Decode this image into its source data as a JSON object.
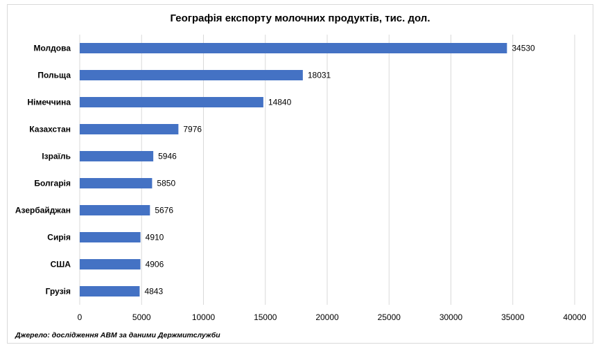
{
  "chart_data": {
    "type": "bar",
    "orientation": "horizontal",
    "title": "Географія експорту молочних продуктів, тис. дол.",
    "categories": [
      "Молдова",
      "Польща",
      "Німеччина",
      "Казахстан",
      "Ізраїль",
      "Болгарія",
      "Азербайджан",
      "Сирія",
      "США",
      "Грузія"
    ],
    "values": [
      34530,
      18031,
      14840,
      7976,
      5946,
      5850,
      5676,
      4910,
      4906,
      4843
    ],
    "xlim": [
      0,
      40000
    ],
    "xticks": [
      0,
      5000,
      10000,
      15000,
      20000,
      25000,
      30000,
      35000,
      40000
    ],
    "grid": true,
    "bar_color": "#4472c4",
    "data_labels": true,
    "xlabel": "",
    "ylabel": ""
  },
  "source_note": "Джерело: дослідження  АВМ за даними  Держмитслужби"
}
